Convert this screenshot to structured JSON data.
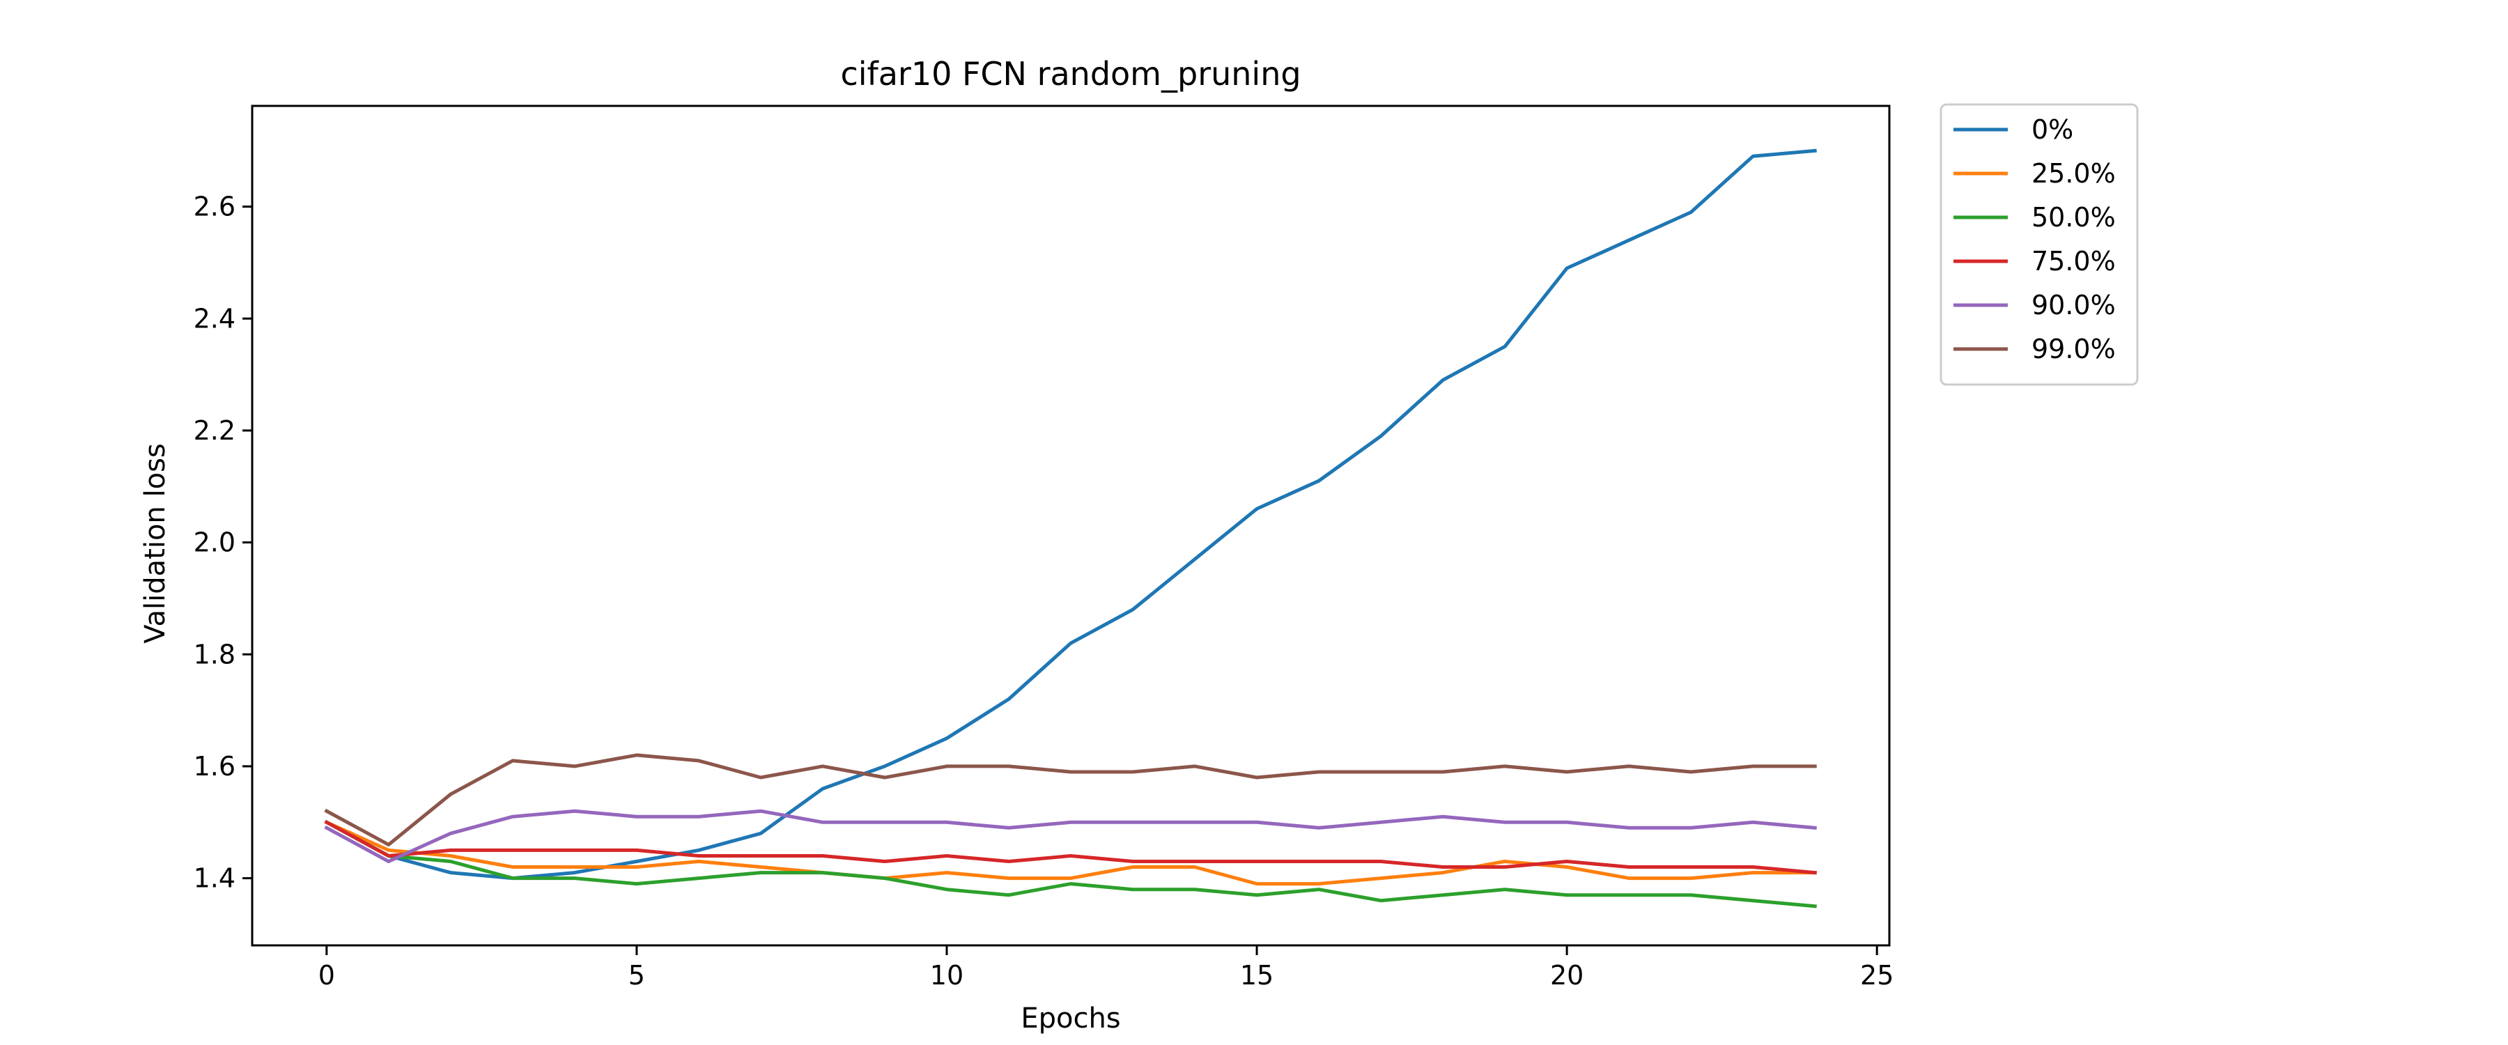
{
  "chart_data": {
    "type": "line",
    "title": "cifar10 FCN random_pruning",
    "xlabel": "Epochs",
    "ylabel": "Validation loss",
    "xlim": [
      -1.2,
      25.2
    ],
    "ylim": [
      1.28,
      2.78
    ],
    "xticks": [
      0,
      5,
      10,
      15,
      20,
      25
    ],
    "yticks": [
      1.4,
      1.6,
      1.8,
      2.0,
      2.2,
      2.4,
      2.6
    ],
    "ytick_labels": [
      "1.4",
      "1.6",
      "1.8",
      "2.0",
      "2.2",
      "2.4",
      "2.6"
    ],
    "grid": false,
    "legend_position": "outside-top-right",
    "x": [
      0,
      1,
      2,
      3,
      4,
      5,
      6,
      7,
      8,
      9,
      10,
      11,
      12,
      13,
      14,
      15,
      16,
      17,
      18,
      19,
      20,
      21,
      22,
      23,
      24
    ],
    "series": [
      {
        "name": "0%",
        "color": "#1f77b4",
        "values": [
          1.5,
          1.44,
          1.41,
          1.4,
          1.41,
          1.43,
          1.45,
          1.48,
          1.56,
          1.6,
          1.65,
          1.72,
          1.82,
          1.88,
          1.97,
          2.06,
          2.11,
          2.19,
          2.29,
          2.35,
          2.49,
          2.54,
          2.59,
          2.69,
          2.7
        ]
      },
      {
        "name": "25.0%",
        "color": "#ff7f0e",
        "values": [
          1.5,
          1.45,
          1.44,
          1.42,
          1.42,
          1.42,
          1.43,
          1.42,
          1.41,
          1.4,
          1.41,
          1.4,
          1.4,
          1.42,
          1.42,
          1.39,
          1.39,
          1.4,
          1.41,
          1.43,
          1.42,
          1.4,
          1.4,
          1.41,
          1.41
        ]
      },
      {
        "name": "50.0%",
        "color": "#2ca02c",
        "values": [
          1.5,
          1.44,
          1.43,
          1.4,
          1.4,
          1.39,
          1.4,
          1.41,
          1.41,
          1.4,
          1.38,
          1.37,
          1.39,
          1.38,
          1.38,
          1.37,
          1.38,
          1.36,
          1.37,
          1.38,
          1.37,
          1.37,
          1.37,
          1.36,
          1.35
        ]
      },
      {
        "name": "75.0%",
        "color": "#d62728",
        "values": [
          1.5,
          1.44,
          1.45,
          1.45,
          1.45,
          1.45,
          1.44,
          1.44,
          1.44,
          1.43,
          1.44,
          1.43,
          1.44,
          1.43,
          1.43,
          1.43,
          1.43,
          1.43,
          1.42,
          1.42,
          1.43,
          1.42,
          1.42,
          1.42,
          1.41
        ]
      },
      {
        "name": "90.0%",
        "color": "#9467bd",
        "values": [
          1.49,
          1.43,
          1.48,
          1.51,
          1.52,
          1.51,
          1.51,
          1.52,
          1.5,
          1.5,
          1.5,
          1.49,
          1.5,
          1.5,
          1.5,
          1.5,
          1.49,
          1.5,
          1.51,
          1.5,
          1.5,
          1.49,
          1.49,
          1.5,
          1.49
        ]
      },
      {
        "name": "99.0%",
        "color": "#8c564b",
        "values": [
          1.52,
          1.46,
          1.55,
          1.61,
          1.6,
          1.62,
          1.61,
          1.58,
          1.6,
          1.58,
          1.6,
          1.6,
          1.59,
          1.59,
          1.6,
          1.58,
          1.59,
          1.59,
          1.59,
          1.6,
          1.59,
          1.6,
          1.59,
          1.6,
          1.6
        ]
      }
    ]
  }
}
